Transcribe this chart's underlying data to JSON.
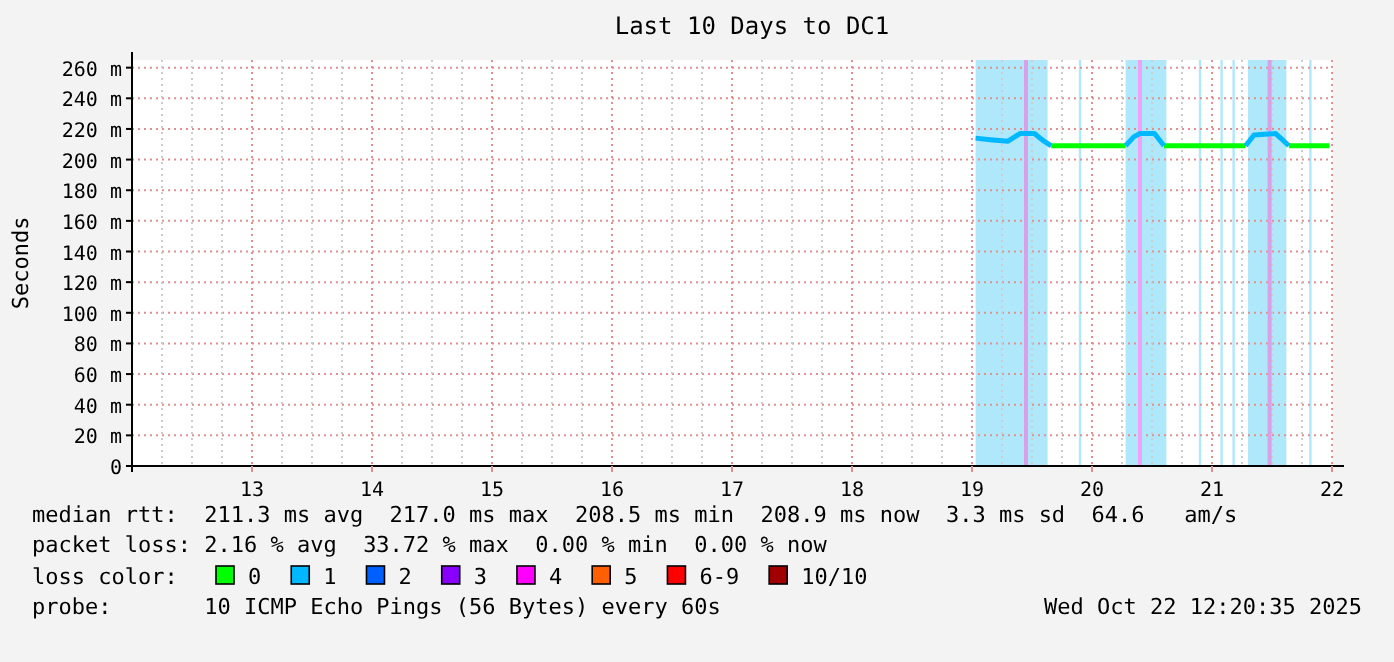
{
  "chart_data": {
    "type": "line",
    "title": "Last 10 Days to DC1",
    "ylabel": "Seconds",
    "xlim": [
      12,
      22
    ],
    "xticks": [
      13,
      14,
      15,
      16,
      17,
      18,
      19,
      20,
      21,
      22
    ],
    "ylim": [
      0,
      265
    ],
    "yticks": [
      0,
      {
        "value": 20,
        "label": "20 m"
      },
      {
        "value": 40,
        "label": "40 m"
      },
      {
        "value": 60,
        "label": "60 m"
      },
      {
        "value": 80,
        "label": "80 m"
      },
      {
        "value": 100,
        "label": "100 m"
      },
      {
        "value": 120,
        "label": "120 m"
      },
      {
        "value": 140,
        "label": "140 m"
      },
      {
        "value": 160,
        "label": "160 m"
      },
      {
        "value": 180,
        "label": "180 m"
      },
      {
        "value": 200,
        "label": "200 m"
      },
      {
        "value": 220,
        "label": "220 m"
      },
      {
        "value": 240,
        "label": "240 m"
      },
      {
        "value": 260,
        "label": "260 m"
      }
    ],
    "grid": true,
    "legend": "bottom",
    "legend_title": "loss color:",
    "series": [
      {
        "name": "0",
        "color": "#00ff00",
        "x": [
          19.66,
          19.8,
          20.0,
          20.2,
          20.28,
          null,
          20.6,
          20.8,
          21.0,
          21.2,
          21.28,
          null,
          21.64,
          21.8,
          21.98
        ],
        "values": [
          209,
          209,
          209,
          209,
          209,
          null,
          209,
          209,
          209,
          209,
          209,
          null,
          209,
          209,
          209
        ]
      },
      {
        "name": "1",
        "color": "#00b8ff",
        "x": [
          19.03,
          19.15,
          19.3,
          19.4,
          19.52,
          19.6,
          19.66,
          null,
          20.28,
          20.35,
          20.4,
          20.52,
          20.6,
          null,
          21.28,
          21.35,
          21.53,
          21.6,
          21.64
        ],
        "values": [
          214,
          213,
          212,
          217,
          217,
          212,
          209,
          null,
          209,
          215,
          217,
          217,
          209,
          null,
          209,
          216,
          217,
          212,
          209
        ]
      },
      {
        "name": "2",
        "color": "#0060ff"
      },
      {
        "name": "3",
        "color": "#8a00ff"
      },
      {
        "name": "4",
        "color": "#ff00ff"
      },
      {
        "name": "5",
        "color": "#ff5f00"
      },
      {
        "name": "6-9",
        "color": "#ff0000"
      },
      {
        "name": "10/10",
        "color": "#a10000"
      }
    ],
    "bands": [
      {
        "axis": "x",
        "from": 19.03,
        "to": 19.63,
        "color": "#b0e8fb"
      },
      {
        "axis": "x",
        "from": 20.28,
        "to": 20.62,
        "color": "#b0e8fb"
      },
      {
        "axis": "x",
        "from": 21.3,
        "to": 21.62,
        "color": "#b0e8fb"
      },
      {
        "axis": "x",
        "from": 19.89,
        "to": 19.91,
        "color": "#b0e8fb"
      },
      {
        "axis": "x",
        "from": 20.89,
        "to": 20.91,
        "color": "#b0e8fb"
      },
      {
        "axis": "x",
        "from": 21.07,
        "to": 21.09,
        "color": "#b0e8fb"
      },
      {
        "axis": "x",
        "from": 21.17,
        "to": 21.19,
        "color": "#b0e8fb"
      },
      {
        "axis": "x",
        "from": 21.81,
        "to": 21.83,
        "color": "#b0e8fb"
      }
    ],
    "ref_lines": [
      {
        "axis": "x",
        "value": 19.45,
        "color": "#d8a0e8"
      },
      {
        "axis": "x",
        "value": 20.4,
        "color": "#f0a0f8"
      },
      {
        "axis": "x",
        "value": 21.48,
        "color": "#d8a0e8"
      }
    ],
    "annotations": [
      "median rtt:  211.3 ms avg  217.0 ms max  208.5 ms min  208.9 ms now  3.3 ms sd  64.6   am/s",
      "packet loss: 2.16 % avg  33.72 % max  0.00 % min  0.00 % now",
      "probe:       10 ICMP Echo Pings (56 Bytes) every 60s",
      "Wed Oct 22 12:20:35 2025"
    ]
  }
}
